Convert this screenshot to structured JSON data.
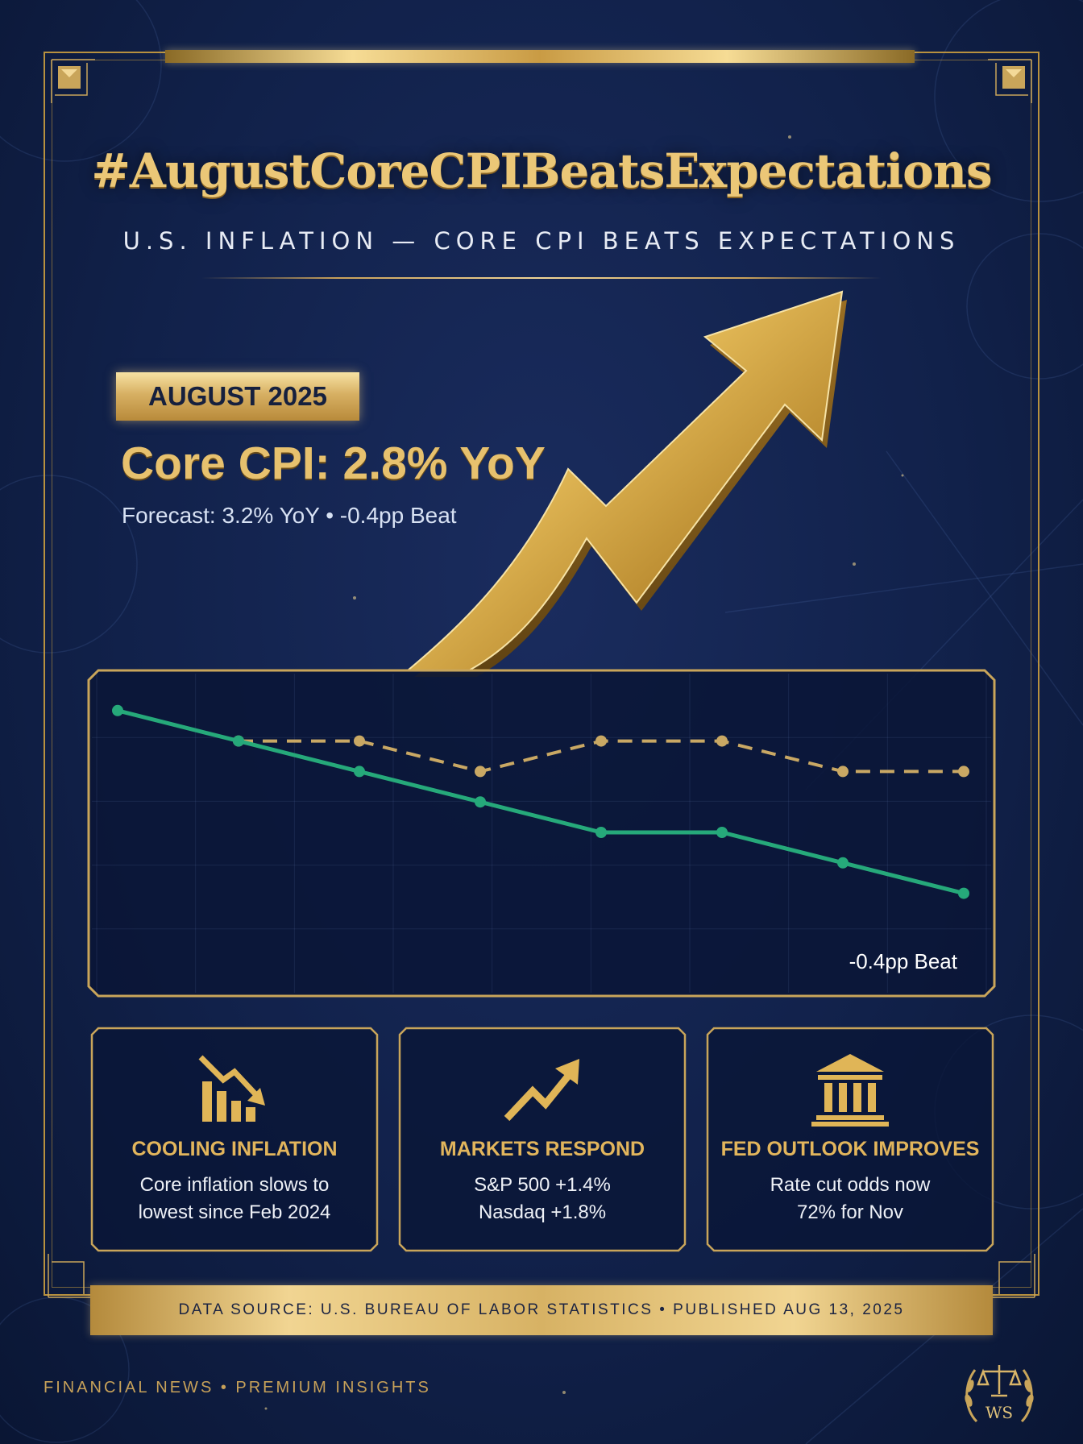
{
  "header": {
    "hashtag": "#AugustCoreCPIBeatsExpectations",
    "subtitle": "U.S. INFLATION — CORE CPI BEATS EXPECTATIONS"
  },
  "headline": {
    "date_badge": "AUGUST 2025",
    "core_cpi": "Core CPI: 2.8% YoY",
    "forecast": "Forecast: 3.2% YoY • -0.4pp Beat"
  },
  "chart_data": {
    "type": "line",
    "title": "",
    "xlabel": "",
    "ylabel": "",
    "x": [
      1,
      2,
      3,
      4,
      5,
      6,
      7,
      8
    ],
    "ylim": [
      0,
      10
    ],
    "grid": true,
    "series": [
      {
        "name": "",
        "style": "dashed",
        "color": "#c9a864",
        "values": [
          null,
          8,
          8,
          7,
          8,
          8,
          7,
          7
        ]
      },
      {
        "name": "",
        "style": "solid",
        "color": "#26a97a",
        "values": [
          9,
          8,
          7,
          6,
          5,
          5,
          4,
          3
        ]
      }
    ],
    "annotation": "-0.4pp Beat"
  },
  "cards": [
    {
      "icon": "chart-down-icon",
      "title": "COOLING INFLATION",
      "line1": "Core inflation slows to",
      "line2": "lowest since Feb 2024"
    },
    {
      "icon": "trend-up-arrow-icon",
      "title": "MARKETS RESPOND",
      "line1": "S&P 500 +1.4%",
      "line2": "Nasdaq +1.8%"
    },
    {
      "icon": "bank-building-icon",
      "title": "FED OUTLOOK IMPROVES",
      "line1": "Rate cut odds now",
      "line2": "72% for Nov"
    }
  ],
  "source": "DATA SOURCE: U.S. BUREAU OF LABOR STATISTICS • PUBLISHED AUG 13, 2025",
  "footer": "FINANCIAL NEWS • PREMIUM INSIGHTS",
  "seal_text": "WS",
  "colors": {
    "background": "#11214a",
    "gold": "#e2bd6a",
    "actual_line": "#26a97a",
    "forecast_line": "#c9a864"
  }
}
